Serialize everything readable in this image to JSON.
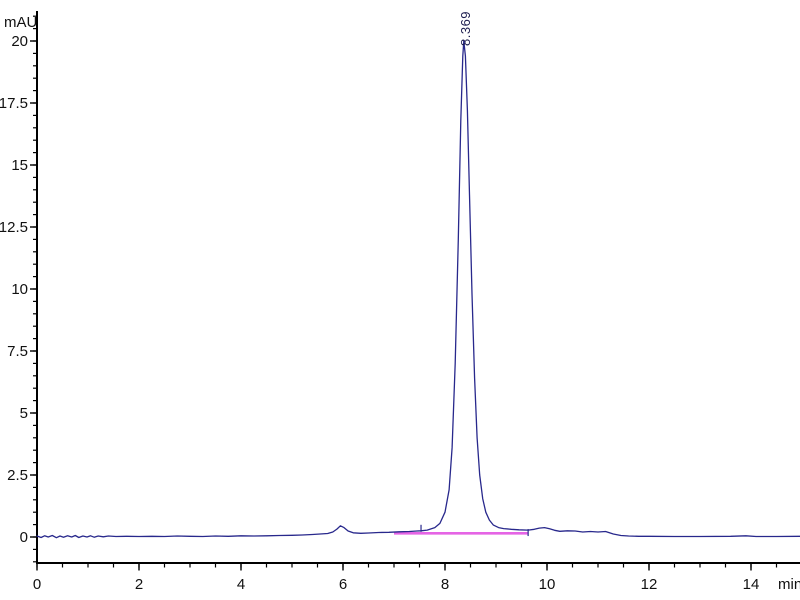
{
  "chart_data": {
    "type": "line",
    "title": "",
    "ylabel": "mAU",
    "xlabel": "min",
    "xlim": [
      0,
      15
    ],
    "ylim": [
      -1.05,
      21.2
    ],
    "grid": false,
    "legend": "none",
    "x_ticks": {
      "values": [
        0,
        2,
        4,
        6,
        8,
        10,
        12,
        14
      ],
      "labels": [
        "0",
        "2",
        "4",
        "6",
        "8",
        "10",
        "12",
        "14"
      ],
      "minor_step": 0.5
    },
    "y_ticks": {
      "values": [
        0,
        2.5,
        5,
        7.5,
        10,
        12.5,
        15,
        17.5,
        20
      ],
      "labels": [
        "0",
        "2.5",
        "5",
        "7.5",
        "10",
        "12.5",
        "15",
        "17.5",
        "20"
      ],
      "minor_step": 0.5
    },
    "colors": {
      "axis": "#000000",
      "text": "#111111",
      "trace": "#28288c",
      "integration": "#e049e0"
    },
    "peak": {
      "label": "8.369",
      "retention_time_min": 8.369,
      "apex_mAU": 20.0,
      "start_min": 7.53,
      "start_signal_mAU": 0.25,
      "end_min": 9.63,
      "end_signal_mAU": 0.28
    },
    "integration_baseline": {
      "x_start_min": 7.0,
      "x_end_min": 9.63,
      "y_mAU": 0.15
    },
    "series": [
      {
        "name": "detector-signal",
        "points": [
          [
            0.0,
            0.04
          ],
          [
            0.08,
            -0.02
          ],
          [
            0.15,
            0.05
          ],
          [
            0.22,
            0.0
          ],
          [
            0.3,
            0.06
          ],
          [
            0.38,
            -0.03
          ],
          [
            0.45,
            0.04
          ],
          [
            0.52,
            -0.01
          ],
          [
            0.6,
            0.05
          ],
          [
            0.68,
            0.0
          ],
          [
            0.75,
            0.06
          ],
          [
            0.82,
            -0.02
          ],
          [
            0.9,
            0.04
          ],
          [
            0.98,
            0.0
          ],
          [
            1.05,
            0.05
          ],
          [
            1.12,
            -0.01
          ],
          [
            1.2,
            0.04
          ],
          [
            1.3,
            0.01
          ],
          [
            1.4,
            0.04
          ],
          [
            1.55,
            0.02
          ],
          [
            1.75,
            0.03
          ],
          [
            2.0,
            0.02
          ],
          [
            2.25,
            0.03
          ],
          [
            2.5,
            0.02
          ],
          [
            2.75,
            0.04
          ],
          [
            3.0,
            0.03
          ],
          [
            3.25,
            0.02
          ],
          [
            3.5,
            0.04
          ],
          [
            3.75,
            0.03
          ],
          [
            4.0,
            0.05
          ],
          [
            4.25,
            0.04
          ],
          [
            4.5,
            0.05
          ],
          [
            4.75,
            0.06
          ],
          [
            5.0,
            0.07
          ],
          [
            5.2,
            0.08
          ],
          [
            5.4,
            0.1
          ],
          [
            5.55,
            0.12
          ],
          [
            5.7,
            0.14
          ],
          [
            5.8,
            0.2
          ],
          [
            5.88,
            0.32
          ],
          [
            5.95,
            0.45
          ],
          [
            6.02,
            0.38
          ],
          [
            6.1,
            0.24
          ],
          [
            6.2,
            0.17
          ],
          [
            6.35,
            0.15
          ],
          [
            6.5,
            0.16
          ],
          [
            6.7,
            0.18
          ],
          [
            6.9,
            0.19
          ],
          [
            7.1,
            0.21
          ],
          [
            7.3,
            0.22
          ],
          [
            7.45,
            0.24
          ],
          [
            7.53,
            0.25
          ],
          [
            7.65,
            0.28
          ],
          [
            7.8,
            0.38
          ],
          [
            7.9,
            0.55
          ],
          [
            8.0,
            1.0
          ],
          [
            8.08,
            1.9
          ],
          [
            8.14,
            3.6
          ],
          [
            8.2,
            7.0
          ],
          [
            8.26,
            12.0
          ],
          [
            8.31,
            16.8
          ],
          [
            8.35,
            19.4
          ],
          [
            8.369,
            20.0
          ],
          [
            8.4,
            19.4
          ],
          [
            8.44,
            17.2
          ],
          [
            8.48,
            13.8
          ],
          [
            8.53,
            9.8
          ],
          [
            8.58,
            6.4
          ],
          [
            8.63,
            4.0
          ],
          [
            8.68,
            2.5
          ],
          [
            8.74,
            1.55
          ],
          [
            8.8,
            1.0
          ],
          [
            8.87,
            0.68
          ],
          [
            8.95,
            0.48
          ],
          [
            9.05,
            0.38
          ],
          [
            9.15,
            0.34
          ],
          [
            9.3,
            0.31
          ],
          [
            9.45,
            0.29
          ],
          [
            9.63,
            0.28
          ],
          [
            9.75,
            0.31
          ],
          [
            9.85,
            0.36
          ],
          [
            9.95,
            0.38
          ],
          [
            10.05,
            0.33
          ],
          [
            10.15,
            0.27
          ],
          [
            10.25,
            0.23
          ],
          [
            10.4,
            0.25
          ],
          [
            10.55,
            0.24
          ],
          [
            10.7,
            0.2
          ],
          [
            10.85,
            0.22
          ],
          [
            11.0,
            0.2
          ],
          [
            11.15,
            0.22
          ],
          [
            11.3,
            0.12
          ],
          [
            11.45,
            0.06
          ],
          [
            11.6,
            0.04
          ],
          [
            11.8,
            0.03
          ],
          [
            12.0,
            0.03
          ],
          [
            12.5,
            0.02
          ],
          [
            13.0,
            0.02
          ],
          [
            13.6,
            0.03
          ],
          [
            13.9,
            0.05
          ],
          [
            14.1,
            0.02
          ],
          [
            14.5,
            0.02
          ],
          [
            15.0,
            0.03
          ]
        ]
      }
    ]
  }
}
